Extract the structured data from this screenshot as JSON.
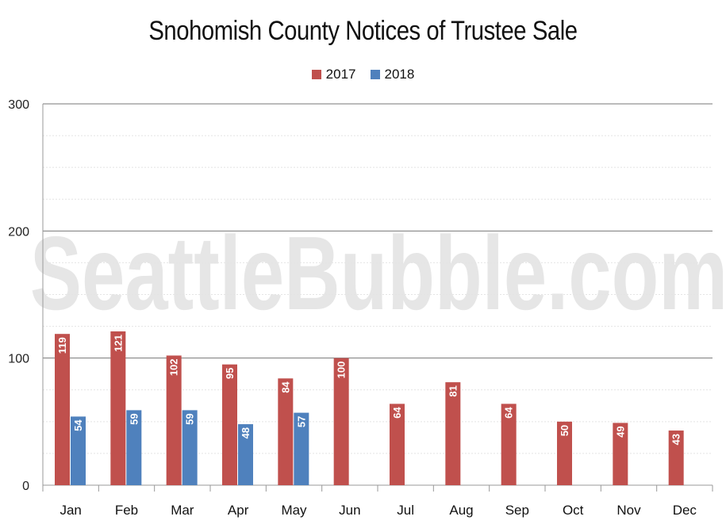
{
  "chart_data": {
    "type": "bar",
    "title": "Snohomish County Notices of Trustee Sale",
    "watermark": "SeattleBubble.com",
    "categories": [
      "Jan",
      "Feb",
      "Mar",
      "Apr",
      "May",
      "Jun",
      "Jul",
      "Aug",
      "Sep",
      "Oct",
      "Nov",
      "Dec"
    ],
    "series": [
      {
        "name": "2017",
        "color": "#c0504d",
        "values": [
          119,
          121,
          102,
          95,
          84,
          100,
          64,
          81,
          64,
          50,
          49,
          43
        ]
      },
      {
        "name": "2018",
        "color": "#4f81bd",
        "values": [
          54,
          59,
          59,
          48,
          57,
          null,
          null,
          null,
          null,
          null,
          null,
          null
        ]
      }
    ],
    "ylim": [
      0,
      300
    ],
    "yticks": [
      0,
      100,
      200,
      300
    ],
    "xlabel": "",
    "ylabel": "",
    "legend_position": "top-center",
    "grid": true
  }
}
